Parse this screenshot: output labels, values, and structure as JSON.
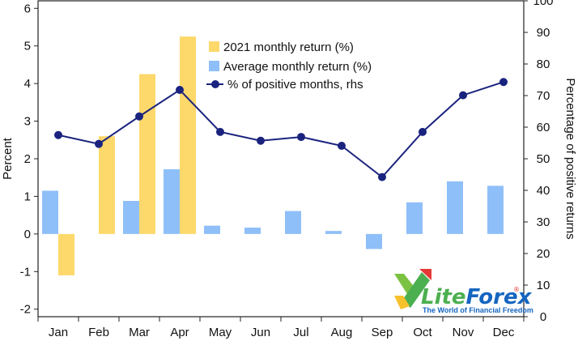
{
  "chart_data": {
    "type": "bar",
    "categories": [
      "Jan",
      "Feb",
      "Mar",
      "Apr",
      "May",
      "Jun",
      "Jul",
      "Aug",
      "Sep",
      "Oct",
      "Nov",
      "Dec"
    ],
    "series": [
      {
        "name": "2021 monthly return (%)",
        "kind": "bar",
        "color": "#fdd86b",
        "axis": "left",
        "values": [
          -1.1,
          2.6,
          4.25,
          5.25,
          null,
          null,
          null,
          null,
          null,
          null,
          null,
          null
        ]
      },
      {
        "name": "Average monthly return (%)",
        "kind": "bar",
        "color": "#8fbff8",
        "axis": "left",
        "values": [
          1.15,
          0,
          0.88,
          1.72,
          0.22,
          0.17,
          0.61,
          0.08,
          -0.4,
          0.84,
          1.4,
          1.28
        ]
      },
      {
        "name": "% of positive months, rhs",
        "kind": "line",
        "color": "#1a237e",
        "axis": "right",
        "values": [
          57.5,
          54.7,
          63.4,
          71.8,
          58.5,
          55.7,
          56.9,
          54.1,
          44.2,
          58.5,
          70.1,
          74.3
        ]
      }
    ],
    "ylabel": "Percent",
    "y2label": "Percentage of positive returns",
    "ylim": [
      -2.2,
      6.2
    ],
    "y_ticks": [
      -2,
      -1,
      0,
      1,
      2,
      3,
      4,
      5,
      6
    ],
    "y2lim": [
      0,
      100
    ],
    "y2_ticks": [
      0,
      10,
      20,
      30,
      40,
      50,
      60,
      70,
      80,
      90,
      100
    ],
    "legend_position": "top-center",
    "grid": false
  },
  "logo": {
    "brand_left": "Lite",
    "brand_right": "Forex",
    "registered": "®",
    "tagline": "The World of Financial Freedom"
  }
}
